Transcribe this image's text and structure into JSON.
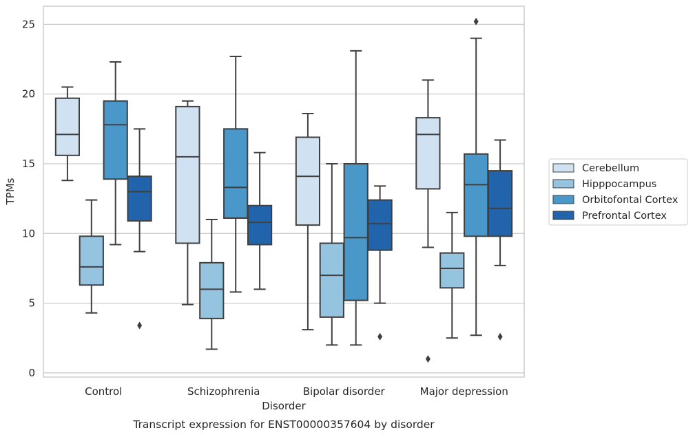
{
  "chart_data": {
    "type": "box",
    "title": "",
    "caption": "Transcript expression for ENST00000357604 by disorder",
    "xlabel": "Disorder",
    "ylabel": "TPMs",
    "ylim": [
      -0.3,
      26.3
    ],
    "yticks": [
      0,
      5,
      10,
      15,
      20,
      25
    ],
    "grid": "horizontal",
    "legend_placement": "right",
    "categories": [
      "Control",
      "Schizophrenia",
      "Bipolar disorder",
      "Major depression"
    ],
    "series": [
      {
        "name": "Cerebellum",
        "color": "#d0e1f2",
        "boxes": [
          {
            "whisker_low": 13.8,
            "q1": 15.6,
            "median": 17.1,
            "q3": 19.7,
            "whisker_high": 20.5,
            "outliers": []
          },
          {
            "whisker_low": 4.9,
            "q1": 9.3,
            "median": 15.5,
            "q3": 19.1,
            "whisker_high": 19.5,
            "outliers": []
          },
          {
            "whisker_low": 3.1,
            "q1": 10.6,
            "median": 14.1,
            "q3": 16.9,
            "whisker_high": 18.6,
            "outliers": []
          },
          {
            "whisker_low": 9.0,
            "q1": 13.2,
            "median": 17.1,
            "q3": 18.3,
            "whisker_high": 21.0,
            "outliers": [
              1.0
            ]
          }
        ]
      },
      {
        "name": "Hipppocampus",
        "color": "#94c4df",
        "boxes": [
          {
            "whisker_low": 4.3,
            "q1": 6.3,
            "median": 7.6,
            "q3": 9.8,
            "whisker_high": 12.4,
            "outliers": []
          },
          {
            "whisker_low": 1.7,
            "q1": 3.9,
            "median": 6.0,
            "q3": 7.9,
            "whisker_high": 11.0,
            "outliers": []
          },
          {
            "whisker_low": 2.0,
            "q1": 4.0,
            "median": 7.0,
            "q3": 9.3,
            "whisker_high": 15.0,
            "outliers": []
          },
          {
            "whisker_low": 2.5,
            "q1": 6.1,
            "median": 7.5,
            "q3": 8.6,
            "whisker_high": 11.5,
            "outliers": []
          }
        ]
      },
      {
        "name": "Orbitofontal Cortex",
        "color": "#4a98c9",
        "boxes": [
          {
            "whisker_low": 9.2,
            "q1": 13.9,
            "median": 17.8,
            "q3": 19.5,
            "whisker_high": 22.3,
            "outliers": []
          },
          {
            "whisker_low": 5.8,
            "q1": 11.1,
            "median": 13.3,
            "q3": 17.5,
            "whisker_high": 22.7,
            "outliers": []
          },
          {
            "whisker_low": 2.0,
            "q1": 5.2,
            "median": 9.7,
            "q3": 15.0,
            "whisker_high": 23.1,
            "outliers": []
          },
          {
            "whisker_low": 2.7,
            "q1": 9.8,
            "median": 13.5,
            "q3": 15.7,
            "whisker_high": 24.0,
            "outliers": [
              25.2
            ]
          }
        ]
      },
      {
        "name": "Prefrontal Cortex",
        "color": "#2164ab",
        "boxes": [
          {
            "whisker_low": 8.7,
            "q1": 10.9,
            "median": 13.0,
            "q3": 14.1,
            "whisker_high": 17.5,
            "outliers": [
              3.4
            ]
          },
          {
            "whisker_low": 6.0,
            "q1": 9.2,
            "median": 10.8,
            "q3": 12.0,
            "whisker_high": 15.8,
            "outliers": []
          },
          {
            "whisker_low": 5.0,
            "q1": 8.8,
            "median": 10.7,
            "q3": 12.4,
            "whisker_high": 13.4,
            "outliers": [
              2.6
            ]
          },
          {
            "whisker_low": 7.7,
            "q1": 9.8,
            "median": 11.8,
            "q3": 14.5,
            "whisker_high": 16.7,
            "outliers": [
              2.6
            ]
          }
        ]
      }
    ]
  }
}
